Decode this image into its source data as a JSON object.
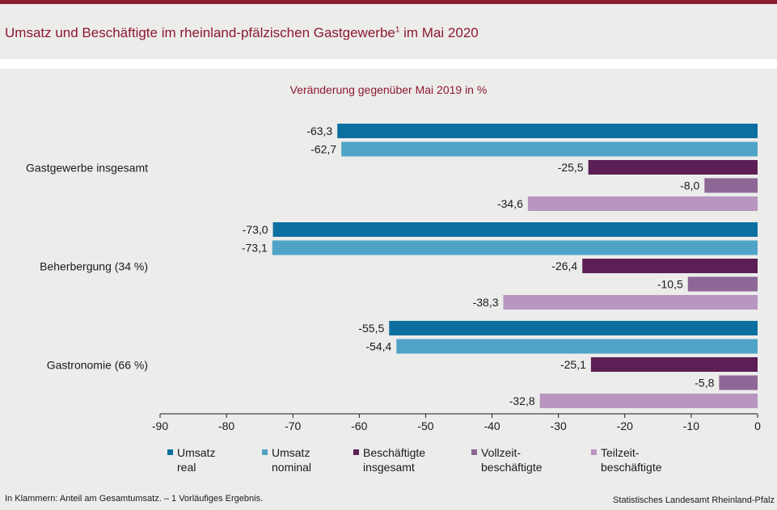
{
  "header": {
    "title_main": "Umsatz und Beschäftigte im rheinland-pfälzischen Gastgewerbe",
    "title_sup": "1",
    "title_tail": " im Mai 2020"
  },
  "chart_data": {
    "type": "bar",
    "orientation": "horizontal",
    "subtitle": "Veränderung gegenüber Mai 2019 in %",
    "categories": [
      "Gastgewerbe insgesamt",
      "Beherbergung (34 %)",
      "Gastronomie (66 %)"
    ],
    "series": [
      {
        "name": "Umsatz real",
        "legend_lines": [
          "Umsatz",
          "real"
        ],
        "color": "#0b6fa0",
        "values": [
          -63.3,
          -73.0,
          -55.5
        ],
        "labels": [
          "-63,3",
          "-73,0",
          "-55,5"
        ]
      },
      {
        "name": "Umsatz nominal",
        "legend_lines": [
          "Umsatz",
          "nominal"
        ],
        "color": "#4fa3c7",
        "values": [
          -62.7,
          -73.1,
          -54.4
        ],
        "labels": [
          "-62,7",
          "-73,1",
          "-54,4"
        ]
      },
      {
        "name": "Beschäftigte insgesamt",
        "legend_lines": [
          "Beschäftigte",
          "insgesamt"
        ],
        "color": "#5b1f55",
        "values": [
          -25.5,
          -26.4,
          -25.1
        ],
        "labels": [
          "-25,5",
          "-26,4",
          "-25,1"
        ]
      },
      {
        "name": "Vollzeitbeschäftigte",
        "legend_lines": [
          "Vollzeit-",
          "beschäftigte"
        ],
        "color": "#8d6796",
        "values": [
          -8.0,
          -10.5,
          -5.8
        ],
        "labels": [
          "-8,0",
          "-10,5",
          "-5,8"
        ]
      },
      {
        "name": "Teilzeitbeschäftigte",
        "legend_lines": [
          "Teilzeit-",
          "beschäftigte"
        ],
        "color": "#b896bf",
        "values": [
          -34.6,
          -38.3,
          -32.8
        ],
        "labels": [
          "-34,6",
          "-38,3",
          "-32,8"
        ]
      }
    ],
    "xlim": [
      -90,
      0
    ],
    "xticks": [
      -90,
      -80,
      -70,
      -60,
      -50,
      -40,
      -30,
      -20,
      -10,
      0
    ],
    "grid": false,
    "legend_position": "bottom"
  },
  "footer": {
    "note": "In Klammern: Anteil am Gesamtumsatz. – 1 Vorläufiges Ergebnis.",
    "source": "Statistisches Landesamt Rheinland-Pfalz"
  }
}
